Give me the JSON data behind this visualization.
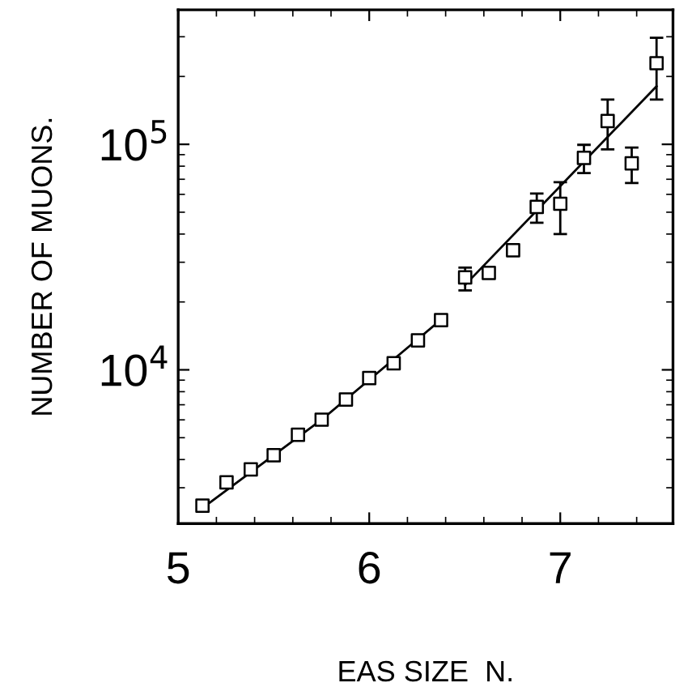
{
  "chart_data": {
    "type": "scatter",
    "xlabel": "EAS SIZE  N.",
    "ylabel": "NUMBER OF MUONS.",
    "log": "y",
    "grid": false,
    "legend": false,
    "xlim": [
      5,
      7.59
    ],
    "xticks": [
      5,
      6,
      7
    ],
    "ylim": [
      2080,
      395000
    ],
    "yticks": [
      {
        "value": 10000,
        "label": "10$^{4}$"
      },
      {
        "value": 100000,
        "label": "10$^{5}$"
      }
    ],
    "series": [
      {
        "color": "#000000",
        "marker": "square",
        "x": [
          5.127,
          5.253,
          5.38,
          5.5,
          5.627,
          5.751,
          5.878,
          6.0,
          6.128,
          6.255,
          6.376,
          6.502,
          6.626,
          6.753,
          6.877,
          7.0,
          7.124,
          7.248,
          7.374,
          7.504
        ],
        "values": [
          2500,
          3170,
          3620,
          4180,
          5150,
          6010,
          7380,
          9200,
          10700,
          13500,
          16600,
          25700,
          26900,
          33900,
          52800,
          54500,
          87100,
          126800,
          82400,
          229000
        ],
        "errors": [
          null,
          null,
          null,
          null,
          null,
          null,
          null,
          null,
          null,
          null,
          null,
          [
            22500,
            28400
          ],
          null,
          null,
          [
            44900,
            60500
          ],
          [
            40000,
            67900
          ],
          [
            74600,
            99500
          ],
          [
            95000,
            158000
          ],
          [
            67400,
            96800
          ],
          [
            158000,
            297000
          ]
        ]
      },
      {
        "type": "line",
        "color": "#000000",
        "marker": "none",
        "line_style": "solid",
        "x": [
          5.13,
          5.75,
          6.38
        ],
        "values": [
          2450,
          6000,
          16800
        ]
      },
      {
        "type": "line",
        "color": "#000000",
        "marker": "none",
        "line_style": "solid",
        "x": [
          6.502,
          7.504
        ],
        "values": [
          23800,
          181000
        ]
      }
    ]
  }
}
